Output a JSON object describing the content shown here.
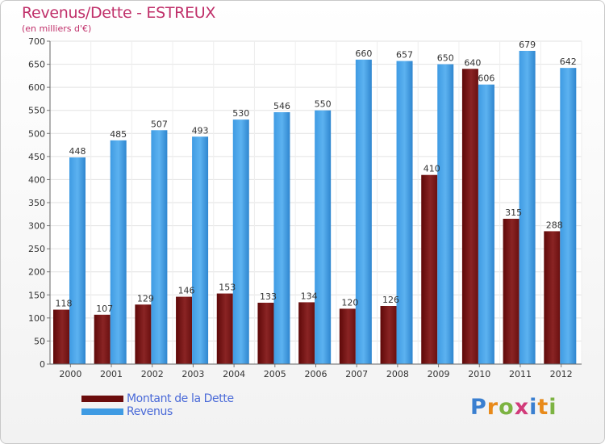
{
  "header": {
    "title": "Revenus/Dette - ESTREUX",
    "subtitle": "(en milliers d'€)"
  },
  "chart_data": {
    "type": "bar",
    "title": "Revenus/Dette - ESTREUX",
    "subtitle": "(en milliers d'€)",
    "categories": [
      "2000",
      "2001",
      "2002",
      "2003",
      "2004",
      "2005",
      "2006",
      "2007",
      "2008",
      "2009",
      "2010",
      "2011",
      "2012"
    ],
    "series": [
      {
        "name": "Montant de la Dette",
        "color": "#7a1a1a",
        "values": [
          118,
          107,
          129,
          146,
          153,
          133,
          134,
          120,
          126,
          410,
          640,
          315,
          288
        ]
      },
      {
        "name": "Revenus",
        "color": "#4aa3e6",
        "values": [
          448,
          485,
          507,
          493,
          530,
          546,
          550,
          660,
          657,
          650,
          606,
          679,
          642
        ]
      }
    ],
    "ylim": [
      0,
      700
    ],
    "yticks": [
      0,
      50,
      100,
      150,
      200,
      250,
      300,
      350,
      400,
      450,
      500,
      550,
      600,
      650,
      700
    ],
    "grid": true,
    "legend_position": "bottom-left"
  },
  "legend": {
    "items": [
      {
        "label": "Montant de la Dette",
        "color": "#6b0c0c"
      },
      {
        "label": "Revenus",
        "color": "#3f9be3"
      }
    ]
  },
  "logo": {
    "letters": [
      "P",
      "r",
      "o",
      "x",
      "i",
      "t",
      "i"
    ],
    "colors": [
      "#3a7fd0",
      "#e88a1a",
      "#7cb342",
      "#d23b7a",
      "#3a7fd0",
      "#e88a1a",
      "#7cb342"
    ]
  }
}
